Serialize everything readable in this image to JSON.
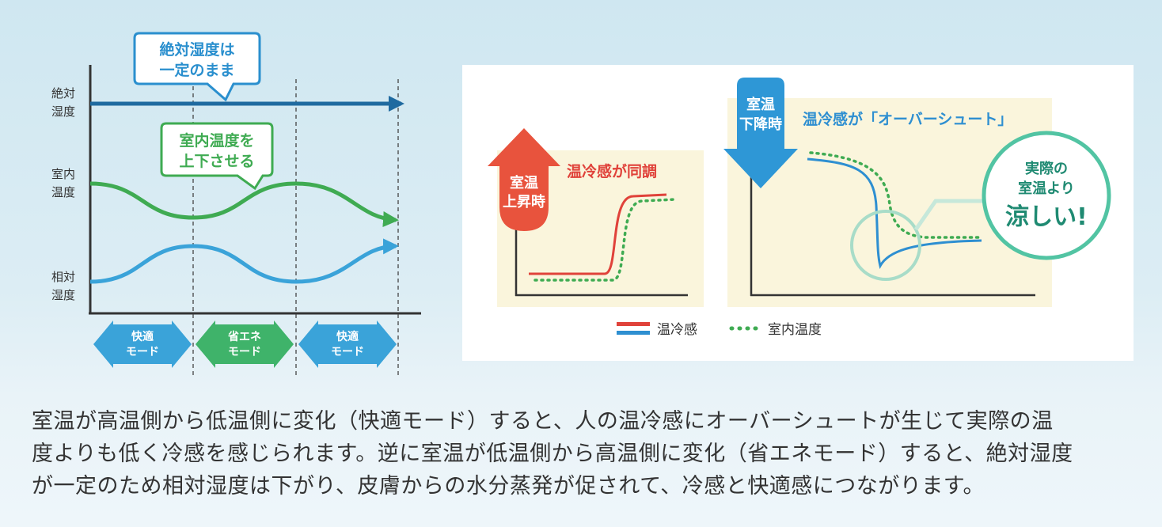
{
  "left_diagram": {
    "y_labels": {
      "absolute_humidity": [
        "絶対",
        "湿度"
      ],
      "room_temperature": [
        "室内",
        "温度"
      ],
      "relative_humidity": [
        "相対",
        "湿度"
      ]
    },
    "callout_absolute": [
      "絶対湿度は",
      "一定のまま"
    ],
    "callout_temperature": [
      "室内温度を",
      "上下させる"
    ],
    "modes": [
      {
        "lines": [
          "快適",
          "モード"
        ],
        "color": "#3aa3d9"
      },
      {
        "lines": [
          "省エネ",
          "モード"
        ],
        "color": "#3fb36a"
      },
      {
        "lines": [
          "快適",
          "モード"
        ],
        "color": "#3aa3d9"
      }
    ],
    "colors": {
      "absolute": "#1f6aa0",
      "temperature": "#3fab52",
      "relative": "#3aa3d9"
    }
  },
  "right_diagram": {
    "panel_a": {
      "badge": [
        "室温",
        "上昇時"
      ],
      "title": "温冷感が同調"
    },
    "panel_b": {
      "badge": [
        "室温",
        "下降時"
      ],
      "title": "温冷感が「オーバーシュート」",
      "bubble": [
        "実際の",
        "室温より",
        "涼しい!"
      ]
    },
    "legend": [
      {
        "label": "温冷感",
        "style": "solid-red-blue"
      },
      {
        "label": "室内温度",
        "style": "dotted-green"
      }
    ],
    "colors": {
      "red": "#e0423a",
      "blue": "#2e8fd1",
      "green": "#3fab52",
      "teal": "#52c4a3"
    }
  },
  "caption": [
    "室温が高温側から低温側に変化（快適モード）すると、人の温冷感にオーバーシュートが生じて実際の温",
    "度よりも低く冷感を感じられます。逆に室温が低温側から高温側に変化（省エネモード）すると、絶対湿度",
    "が一定のため相対湿度は下がり、皮膚からの水分蒸発が促されて、冷感と快適感につながります。"
  ]
}
